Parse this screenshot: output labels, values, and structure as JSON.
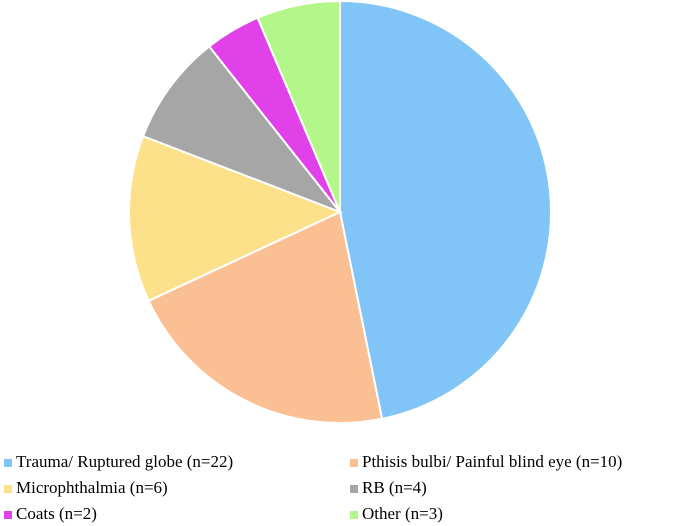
{
  "chart_data": {
    "type": "pie",
    "categories": [
      "Trauma/ Ruptured globe (n=22)",
      "Pthisis bulbi/ Painful blind eye (n=10)",
      "Microphthalmia (n=6)",
      "RB (n=4)",
      "Coats (n=2)",
      "Other (n=3)"
    ],
    "values": [
      22,
      10,
      6,
      4,
      2,
      3
    ],
    "colors": [
      "#80c4f8",
      "#fbbf94",
      "#fde08a",
      "#a6a6a6",
      "#e041e8",
      "#b3f78a"
    ]
  }
}
